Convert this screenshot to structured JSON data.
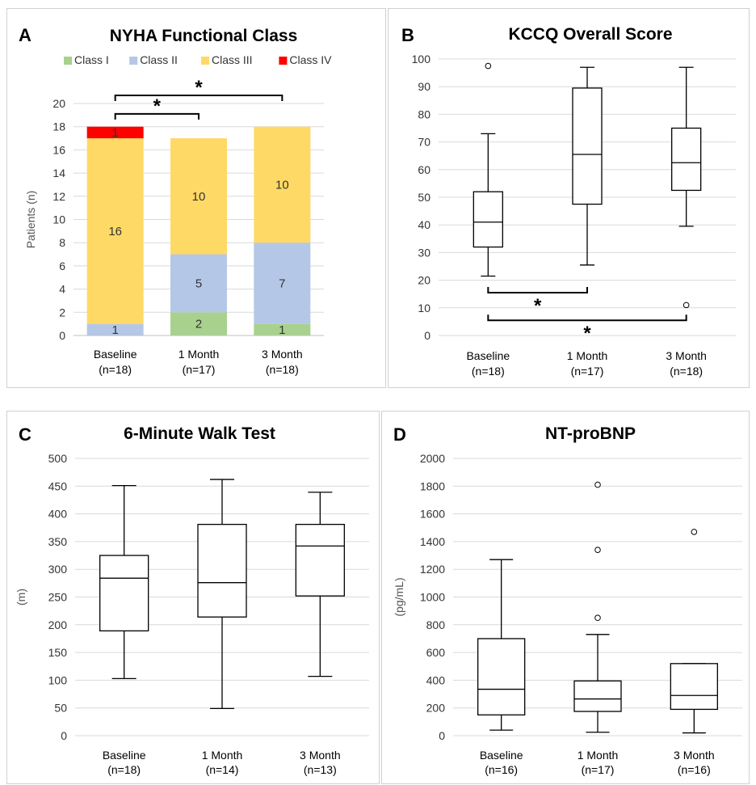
{
  "chart_data": [
    {
      "type": "bar",
      "stacked": true,
      "label": "A",
      "title": "NYHA Functional Class",
      "ylabel": "Patients (n)",
      "ylim": [
        0,
        20
      ],
      "yticks": [
        0,
        2,
        4,
        6,
        8,
        10,
        12,
        14,
        16,
        18,
        20
      ],
      "categories": [
        "Baseline",
        "1 Month",
        "3 Month"
      ],
      "categories_n": [
        "(n=18)",
        "(n=17)",
        "(n=18)"
      ],
      "legend_position": "top",
      "series": [
        {
          "name": "Class I",
          "color": "#a9d18e",
          "values": [
            0,
            2,
            1
          ],
          "labels": [
            "",
            "2",
            "1"
          ]
        },
        {
          "name": "Class II",
          "color": "#b4c7e7",
          "values": [
            1,
            5,
            7
          ],
          "labels": [
            "1",
            "5",
            "7"
          ]
        },
        {
          "name": "Class III",
          "color": "#ffd966",
          "values": [
            16,
            10,
            10
          ],
          "labels": [
            "16",
            "10",
            "10"
          ]
        },
        {
          "name": "Class IV",
          "color": "#ff0000",
          "values": [
            1,
            0,
            0
          ],
          "labels": [
            "1",
            "",
            ""
          ]
        }
      ],
      "significance": [
        {
          "from": 0,
          "to": 1,
          "label": "*",
          "y": 19.1
        },
        {
          "from": 0,
          "to": 2,
          "label": "*",
          "y": 20.7
        }
      ]
    },
    {
      "type": "box",
      "label": "B",
      "title": "KCCQ Overall Score",
      "ylabel": "",
      "ylim": [
        0,
        100
      ],
      "yticks": [
        0,
        10,
        20,
        30,
        40,
        50,
        60,
        70,
        80,
        90,
        100
      ],
      "categories": [
        "Baseline",
        "1 Month",
        "3 Month"
      ],
      "categories_n": [
        "(n=18)",
        "(n=17)",
        "(n=18)"
      ],
      "boxes": [
        {
          "min": 21.5,
          "q1": 32,
          "median": 41,
          "q3": 52,
          "max": 73,
          "outliers": [
            97.5
          ]
        },
        {
          "min": 25.5,
          "q1": 47.5,
          "median": 65.5,
          "q3": 89.5,
          "max": 97,
          "outliers": []
        },
        {
          "min": 39.5,
          "q1": 52.5,
          "median": 62.5,
          "q3": 75,
          "max": 97,
          "outliers": [
            11
          ]
        }
      ],
      "significance": [
        {
          "from": 0,
          "to": 1,
          "label": "*",
          "y": 15.5
        },
        {
          "from": 0,
          "to": 2,
          "label": "*",
          "y": 5.5
        }
      ]
    },
    {
      "type": "box",
      "label": "C",
      "title": "6-Minute Walk Test",
      "ylabel": "(m)",
      "ylim": [
        0,
        500
      ],
      "yticks": [
        0,
        50,
        100,
        150,
        200,
        250,
        300,
        350,
        400,
        450,
        500
      ],
      "categories": [
        "Baseline",
        "1 Month",
        "3 Month"
      ],
      "categories_n": [
        "(n=18)",
        "(n=14)",
        "(n=13)"
      ],
      "boxes": [
        {
          "min": 103,
          "q1": 189,
          "median": 284,
          "q3": 325,
          "max": 451,
          "outliers": []
        },
        {
          "min": 49,
          "q1": 214,
          "median": 276,
          "q3": 381,
          "max": 462,
          "outliers": []
        },
        {
          "min": 107,
          "q1": 252,
          "median": 342,
          "q3": 381,
          "max": 439,
          "outliers": []
        }
      ],
      "significance": []
    },
    {
      "type": "box",
      "label": "D",
      "title": "NT-proBNP",
      "ylabel": "(pg/mL)",
      "ylim": [
        0,
        2000
      ],
      "yticks": [
        0,
        200,
        400,
        600,
        800,
        1000,
        1200,
        1400,
        1600,
        1800,
        2000
      ],
      "categories": [
        "Baseline",
        "1 Month",
        "3 Month"
      ],
      "categories_n": [
        "(n=16)",
        "(n=17)",
        "(n=16)"
      ],
      "boxes": [
        {
          "min": 40,
          "q1": 150,
          "median": 335,
          "q3": 700,
          "max": 1270,
          "outliers": []
        },
        {
          "min": 25,
          "q1": 175,
          "median": 265,
          "q3": 395,
          "max": 730,
          "outliers": [
            850,
            1340,
            1810
          ]
        },
        {
          "min": 20,
          "q1": 190,
          "median": 290,
          "q3": 520,
          "max": 520,
          "outliers": [
            1470
          ]
        }
      ],
      "significance": []
    }
  ]
}
